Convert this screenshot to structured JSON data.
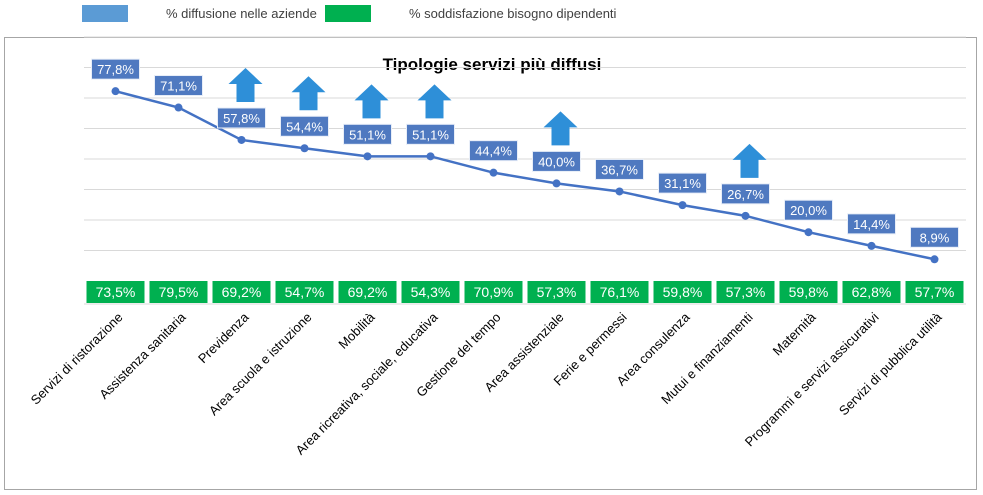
{
  "legend": [
    {
      "label": "% diffusione nelle aziende",
      "color": "#5b9bd5"
    },
    {
      "label": "% soddisfazione bisogno dipendenti",
      "color": "#00b050"
    }
  ],
  "chart_data": {
    "type": "line",
    "title": "Tipologie servizi più diffusi",
    "xlabel": "",
    "ylabel": "",
    "ylim": [
      0,
      100
    ],
    "grid": true,
    "legend_position": "top-left",
    "categories": [
      "Servizi di ristorazione",
      "Assistenza sanitaria",
      "Previdenza",
      "Area scuola e istruzione",
      "Mobilità",
      "Area ricreativa, sociale, educativa",
      "Gestione del tempo",
      "Area assistenziale",
      "Ferie e permessi",
      "Area consulenza",
      "Mutui e finanziamenti",
      "Maternità",
      "Programmi e servizi assicurativi",
      "Servizi di pubblica utilità"
    ],
    "series": [
      {
        "name": "% diffusione nelle aziende",
        "color": "#4472c4",
        "label_bg": "#4f79c0",
        "values": [
          77.8,
          71.1,
          57.8,
          54.4,
          51.1,
          51.1,
          44.4,
          40.0,
          36.7,
          31.1,
          26.7,
          20.0,
          14.4,
          8.9
        ],
        "labels": [
          "77,8%",
          "71,1%",
          "57,8%",
          "54,4%",
          "51,1%",
          "51,1%",
          "44,4%",
          "40,0%",
          "36,7%",
          "31,1%",
          "26,7%",
          "20,0%",
          "14,4%",
          "8,9%"
        ]
      },
      {
        "name": "% soddisfazione bisogno dipendenti",
        "color": "#00b050",
        "values": [
          73.5,
          79.5,
          69.2,
          54.7,
          69.2,
          54.3,
          70.9,
          57.3,
          76.1,
          59.8,
          57.3,
          59.8,
          62.8,
          57.7
        ],
        "labels": [
          "73,5%",
          "79,5%",
          "69,2%",
          "54,7%",
          "69,2%",
          "54,3%",
          "70,9%",
          "57,3%",
          "76,1%",
          "59,8%",
          "57,3%",
          "59,8%",
          "62,8%",
          "57,7%"
        ]
      }
    ],
    "annotations": {
      "up_arrow_icon": "up-arrow-icon",
      "arrow_color": "#2e8fd8",
      "up_arrow_categories": [
        2,
        3,
        4,
        5,
        7,
        10
      ]
    }
  }
}
